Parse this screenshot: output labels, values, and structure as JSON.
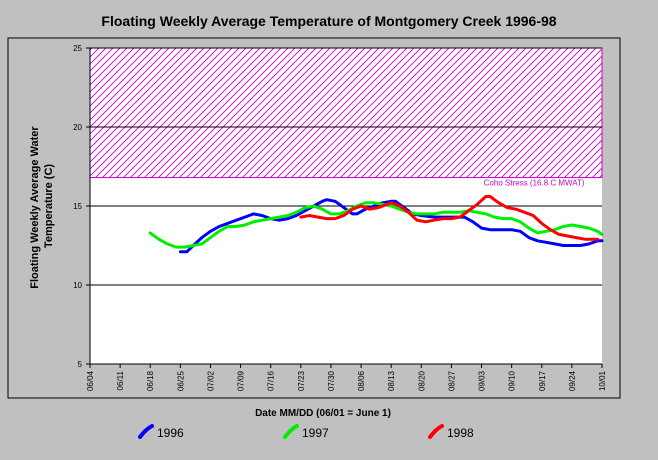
{
  "chart_data": {
    "type": "line",
    "title": "Floating Weekly Average Temperature of Montgomery Creek 1996-98",
    "xlabel": "Date MM/DD (06/01 = June 1)",
    "ylabel_lines": [
      "Floating Weekly Average Water",
      "Temperature (C)"
    ],
    "ylim": [
      5,
      25
    ],
    "yticks": [
      5,
      10,
      15,
      20,
      25
    ],
    "x_range_days": [
      3,
      122
    ],
    "x_ticks": [
      {
        "label": "06/04",
        "day": 3
      },
      {
        "label": "06/11",
        "day": 10
      },
      {
        "label": "06/18",
        "day": 17
      },
      {
        "label": "06/25",
        "day": 24
      },
      {
        "label": "07/02",
        "day": 31
      },
      {
        "label": "07/09",
        "day": 38
      },
      {
        "label": "07/16",
        "day": 45
      },
      {
        "label": "07/23",
        "day": 52
      },
      {
        "label": "07/30",
        "day": 59
      },
      {
        "label": "08/06",
        "day": 66
      },
      {
        "label": "08/13",
        "day": 73
      },
      {
        "label": "08/20",
        "day": 80
      },
      {
        "label": "08/27",
        "day": 87
      },
      {
        "label": "09/03",
        "day": 94
      },
      {
        "label": "09/10",
        "day": 101
      },
      {
        "label": "09/17",
        "day": 108
      },
      {
        "label": "09/24",
        "day": 115
      },
      {
        "label": "10/01",
        "day": 122
      }
    ],
    "grid": "horizontal",
    "threshold": {
      "y_from": 16.8,
      "y_to": 25,
      "label": "Coho Stress (16.8 C MWAT)",
      "color": "#cc00cc"
    },
    "series": [
      {
        "name": "1996",
        "color": "#0000ff",
        "points": [
          [
            24,
            12.1
          ],
          [
            25.5,
            12.1
          ],
          [
            27,
            12.5
          ],
          [
            29,
            13.0
          ],
          [
            31,
            13.4
          ],
          [
            33,
            13.7
          ],
          [
            35,
            13.9
          ],
          [
            37,
            14.1
          ],
          [
            39,
            14.3
          ],
          [
            41,
            14.5
          ],
          [
            43,
            14.4
          ],
          [
            45,
            14.2
          ],
          [
            47,
            14.1
          ],
          [
            49,
            14.2
          ],
          [
            51,
            14.4
          ],
          [
            53,
            14.7
          ],
          [
            55,
            15.0
          ],
          [
            57,
            15.3
          ],
          [
            58,
            15.4
          ],
          [
            60,
            15.3
          ],
          [
            62,
            14.9
          ],
          [
            64,
            14.5
          ],
          [
            65,
            14.5
          ],
          [
            67,
            14.8
          ],
          [
            69,
            15.0
          ],
          [
            71,
            15.2
          ],
          [
            73,
            15.3
          ],
          [
            74,
            15.3
          ],
          [
            76,
            14.9
          ],
          [
            78,
            14.5
          ],
          [
            80,
            14.4
          ],
          [
            83,
            14.3
          ],
          [
            85,
            14.3
          ],
          [
            87,
            14.3
          ],
          [
            89,
            14.3
          ],
          [
            90,
            14.3
          ],
          [
            92,
            14.0
          ],
          [
            94,
            13.6
          ],
          [
            96,
            13.5
          ],
          [
            98,
            13.5
          ],
          [
            101,
            13.5
          ],
          [
            103,
            13.4
          ],
          [
            105,
            13.0
          ],
          [
            107,
            12.8
          ],
          [
            109,
            12.7
          ],
          [
            111,
            12.6
          ],
          [
            113,
            12.5
          ],
          [
            115,
            12.5
          ],
          [
            117,
            12.5
          ],
          [
            119,
            12.6
          ],
          [
            121,
            12.8
          ],
          [
            122,
            12.8
          ]
        ]
      },
      {
        "name": "1997",
        "color": "#00ee00",
        "points": [
          [
            17,
            13.3
          ],
          [
            19,
            12.9
          ],
          [
            21,
            12.6
          ],
          [
            23,
            12.4
          ],
          [
            25,
            12.4
          ],
          [
            27,
            12.5
          ],
          [
            29,
            12.6
          ],
          [
            31,
            13.0
          ],
          [
            33,
            13.4
          ],
          [
            35,
            13.7
          ],
          [
            37,
            13.7
          ],
          [
            39,
            13.8
          ],
          [
            41,
            14.0
          ],
          [
            43,
            14.1
          ],
          [
            45,
            14.2
          ],
          [
            47,
            14.3
          ],
          [
            49,
            14.4
          ],
          [
            51,
            14.6
          ],
          [
            53,
            14.9
          ],
          [
            55,
            15.0
          ],
          [
            57,
            14.8
          ],
          [
            59,
            14.5
          ],
          [
            61,
            14.5
          ],
          [
            63,
            14.7
          ],
          [
            65,
            15.0
          ],
          [
            67,
            15.2
          ],
          [
            69,
            15.2
          ],
          [
            71,
            15.1
          ],
          [
            73,
            15.0
          ],
          [
            75,
            14.8
          ],
          [
            77,
            14.6
          ],
          [
            79,
            14.5
          ],
          [
            81,
            14.5
          ],
          [
            83,
            14.5
          ],
          [
            85,
            14.6
          ],
          [
            87,
            14.6
          ],
          [
            89,
            14.6
          ],
          [
            91,
            14.7
          ],
          [
            93,
            14.6
          ],
          [
            95,
            14.5
          ],
          [
            97,
            14.3
          ],
          [
            99,
            14.2
          ],
          [
            101,
            14.2
          ],
          [
            103,
            14.0
          ],
          [
            105,
            13.6
          ],
          [
            107,
            13.3
          ],
          [
            109,
            13.4
          ],
          [
            111,
            13.5
          ],
          [
            113,
            13.7
          ],
          [
            115,
            13.8
          ],
          [
            117,
            13.7
          ],
          [
            119,
            13.6
          ],
          [
            121,
            13.4
          ],
          [
            122,
            13.2
          ]
        ]
      },
      {
        "name": "1998",
        "color": "#ff0000",
        "points": [
          [
            52,
            14.3
          ],
          [
            54,
            14.4
          ],
          [
            56,
            14.3
          ],
          [
            58,
            14.2
          ],
          [
            60,
            14.2
          ],
          [
            62,
            14.4
          ],
          [
            64,
            14.8
          ],
          [
            66,
            15.0
          ],
          [
            68,
            14.8
          ],
          [
            70,
            14.9
          ],
          [
            72,
            15.1
          ],
          [
            73,
            15.2
          ],
          [
            75,
            15.0
          ],
          [
            77,
            14.6
          ],
          [
            79,
            14.1
          ],
          [
            81,
            14.0
          ],
          [
            83,
            14.1
          ],
          [
            85,
            14.2
          ],
          [
            87,
            14.2
          ],
          [
            89,
            14.3
          ],
          [
            91,
            14.7
          ],
          [
            93,
            15.1
          ],
          [
            95,
            15.6
          ],
          [
            96,
            15.6
          ],
          [
            98,
            15.2
          ],
          [
            100,
            14.9
          ],
          [
            102,
            14.8
          ],
          [
            104,
            14.6
          ],
          [
            106,
            14.4
          ],
          [
            108,
            13.9
          ],
          [
            110,
            13.5
          ],
          [
            112,
            13.2
          ],
          [
            114,
            13.1
          ],
          [
            116,
            13.0
          ],
          [
            118,
            12.9
          ],
          [
            120,
            12.9
          ],
          [
            121,
            12.9
          ]
        ]
      }
    ],
    "legend_position": "bottom"
  }
}
